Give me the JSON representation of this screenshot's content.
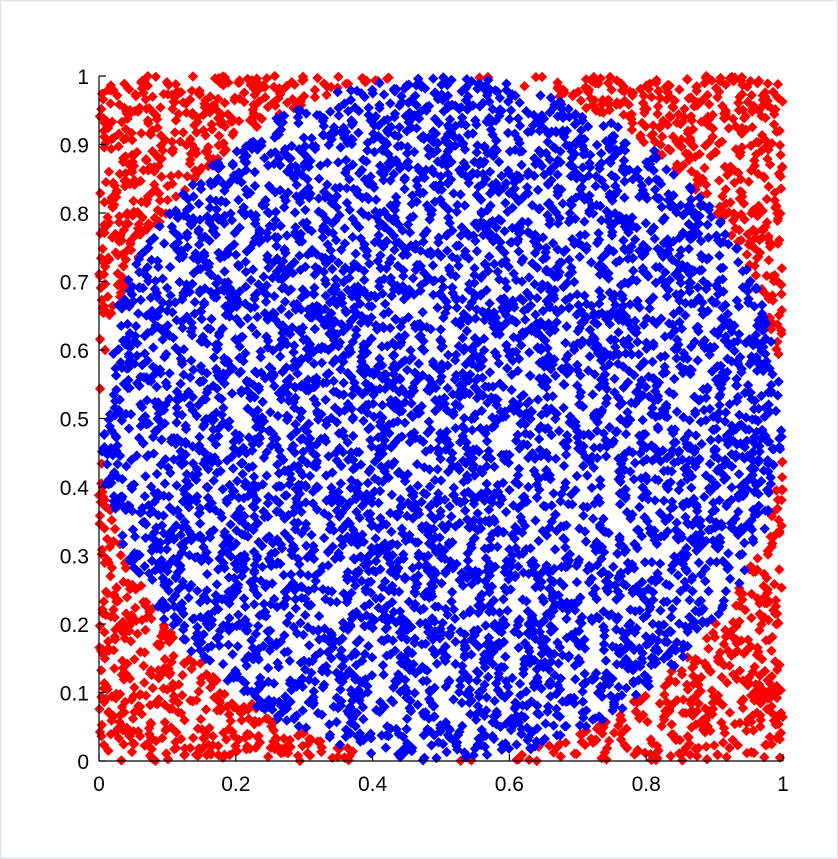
{
  "chart_data": {
    "type": "scatter",
    "title": "",
    "xlabel": "",
    "ylabel": "",
    "xlim": [
      0,
      1
    ],
    "ylim": [
      0,
      1
    ],
    "x_ticks": [
      "0",
      "0.2",
      "0.4",
      "0.6",
      "0.8",
      "1"
    ],
    "y_ticks": [
      "0",
      "0.1",
      "0.2",
      "0.3",
      "0.4",
      "0.5",
      "0.6",
      "0.7",
      "0.8",
      "0.9",
      "1"
    ],
    "x_tick_values": [
      0,
      0.2,
      0.4,
      0.6,
      0.8,
      1
    ],
    "y_tick_values": [
      0,
      0.1,
      0.2,
      0.3,
      0.4,
      0.5,
      0.6,
      0.7,
      0.8,
      0.9,
      1
    ],
    "grid": false,
    "legend": "none",
    "marker": "diamond",
    "series": [
      {
        "color": "#ff0000",
        "region": "points outside the circle of radius 0.5 centered at (0.5, 0.5)",
        "values_sample": [
          [
            0.03,
            0.97
          ],
          [
            0.95,
            0.96
          ],
          [
            0.04,
            0.05
          ],
          [
            0.97,
            0.03
          ],
          [
            0.12,
            0.9
          ],
          [
            0.88,
            0.1
          ]
        ]
      },
      {
        "color": "#0000ff",
        "region": "points inside the circle of radius 0.5 centered at (0.5, 0.5)",
        "values_sample": [
          [
            0.5,
            0.5
          ],
          [
            0.3,
            0.7
          ],
          [
            0.7,
            0.3
          ],
          [
            0.5,
            0.05
          ],
          [
            0.5,
            0.95
          ],
          [
            0.05,
            0.5
          ]
        ]
      }
    ]
  },
  "colors": {
    "outside": "#ff0000",
    "inside": "#0000ff",
    "axes": "#000000",
    "background": "#ffffff",
    "frame": "#dfe3ea"
  }
}
